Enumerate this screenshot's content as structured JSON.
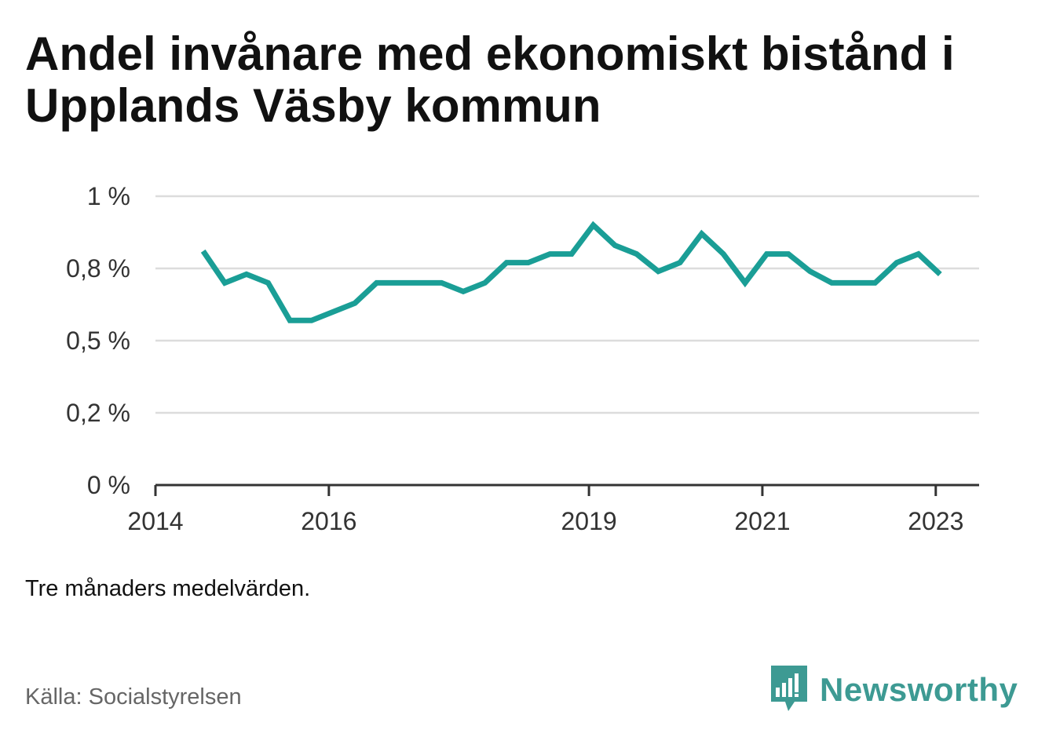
{
  "title": "Andel invånare med ekonomiskt bistånd i Upplands Väsby kommun",
  "note": "Tre månaders medelvärden.",
  "source": "Källa: Socialstyrelsen",
  "logo": {
    "text": "Newsworthy",
    "icon": "bar-chart-speech-bubble-icon",
    "color": "#3d9a93"
  },
  "chart_data": {
    "type": "line",
    "title": "Andel invånare med ekonomiskt bistånd i Upplands Väsby kommun",
    "xlabel": "",
    "ylabel": "",
    "x_ticks": [
      "2014",
      "2016",
      "2019",
      "2021",
      "2023"
    ],
    "x_tick_values": [
      2014.0,
      2016.0,
      2019.0,
      2021.0,
      2023.0
    ],
    "y_ticks": [
      "0 %",
      "0,2 %",
      "0,5 %",
      "0,8 %",
      "1 %"
    ],
    "y_tick_values": [
      0,
      0.25,
      0.5,
      0.75,
      1.0
    ],
    "xlim": [
      2014.0,
      2023.5
    ],
    "ylim": [
      0,
      1.0
    ],
    "grid": true,
    "line_color": "#1a9e96",
    "series": [
      {
        "x": [
          2014.55,
          2014.8,
          2015.05,
          2015.3,
          2015.55,
          2015.8,
          2016.05,
          2016.3,
          2016.55,
          2016.8,
          2017.05,
          2017.3,
          2017.55,
          2017.8,
          2018.05,
          2018.3,
          2018.55,
          2018.8,
          2019.05,
          2019.3,
          2019.55,
          2019.8,
          2020.05,
          2020.3,
          2020.55,
          2020.8,
          2021.05,
          2021.3,
          2021.55,
          2021.8,
          2022.05,
          2022.3,
          2022.55,
          2022.8,
          2023.05
        ],
        "values": [
          0.81,
          0.7,
          0.73,
          0.7,
          0.57,
          0.57,
          0.6,
          0.63,
          0.7,
          0.7,
          0.7,
          0.7,
          0.67,
          0.7,
          0.77,
          0.77,
          0.8,
          0.8,
          0.9,
          0.83,
          0.8,
          0.74,
          0.77,
          0.87,
          0.8,
          0.7,
          0.8,
          0.8,
          0.74,
          0.7,
          0.7,
          0.7,
          0.77,
          0.8,
          0.73
        ]
      }
    ]
  }
}
